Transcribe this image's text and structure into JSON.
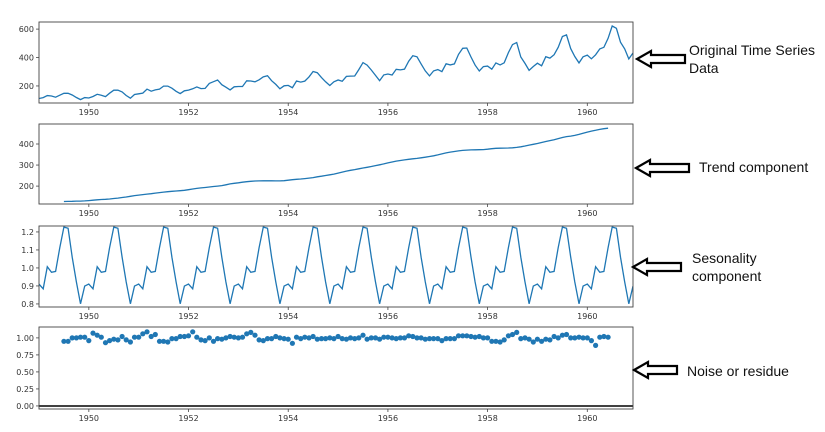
{
  "chart_data": [
    {
      "type": "line",
      "start": "1949-01",
      "frequency": "monthly",
      "values": [
        112,
        118,
        132,
        129,
        121,
        135,
        148,
        148,
        136,
        119,
        104,
        118,
        115,
        126,
        141,
        135,
        125,
        149,
        170,
        170,
        158,
        133,
        114,
        140,
        145,
        150,
        178,
        163,
        172,
        178,
        199,
        199,
        184,
        162,
        146,
        166,
        171,
        180,
        193,
        181,
        183,
        218,
        230,
        242,
        209,
        191,
        172,
        194,
        196,
        196,
        236,
        235,
        229,
        243,
        264,
        272,
        237,
        211,
        180,
        201,
        204,
        188,
        235,
        227,
        234,
        264,
        302,
        293,
        259,
        229,
        203,
        229,
        242,
        233,
        267,
        269,
        270,
        315,
        364,
        347,
        312,
        274,
        237,
        278,
        284,
        277,
        317,
        313,
        318,
        374,
        413,
        405,
        355,
        306,
        271,
        306,
        315,
        301,
        356,
        348,
        355,
        422,
        465,
        467,
        404,
        347,
        305,
        336,
        340,
        318,
        362,
        348,
        363,
        435,
        491,
        505,
        404,
        359,
        310,
        337,
        360,
        342,
        406,
        396,
        420,
        472,
        548,
        559,
        463,
        407,
        362,
        405,
        417,
        391,
        419,
        461,
        472,
        535,
        622,
        606,
        508,
        461,
        390,
        432
      ],
      "ylim": [
        80,
        650
      ],
      "yticks": [
        "200",
        "400",
        "600"
      ],
      "ytick_values": [
        200,
        400,
        600
      ]
    },
    {
      "type": "line",
      "start": "1949-07",
      "frequency": "monthly",
      "values": [
        126.8,
        127.3,
        128.0,
        128.6,
        129.0,
        129.8,
        131.2,
        133.1,
        134.9,
        136.4,
        137.4,
        138.8,
        140.9,
        143.2,
        145.7,
        148.4,
        151.5,
        154.7,
        157.1,
        159.5,
        161.8,
        164.1,
        166.7,
        169.1,
        171.3,
        173.6,
        175.5,
        176.8,
        178.0,
        180.2,
        183.1,
        186.2,
        189.0,
        191.3,
        193.6,
        195.8,
        198.0,
        199.8,
        202.2,
        206.3,
        210.4,
        213.4,
        215.8,
        218.5,
        220.9,
        222.9,
        224.1,
        224.7,
        225.3,
        225.3,
        225.0,
        224.6,
        224.5,
        225.5,
        228.0,
        230.5,
        232.2,
        233.9,
        235.6,
        237.8,
        240.5,
        244.0,
        247.2,
        250.3,
        253.5,
        257.1,
        261.8,
        266.7,
        271.1,
        275.2,
        278.5,
        282.0,
        285.8,
        289.3,
        293.3,
        297.2,
        301.0,
        305.5,
        310.0,
        314.4,
        318.6,
        321.8,
        324.5,
        327.1,
        329.5,
        331.8,
        334.5,
        337.5,
        340.5,
        344.1,
        348.2,
        353.0,
        357.6,
        361.4,
        364.5,
        367.2,
        369.5,
        371.2,
        372.2,
        372.4,
        372.8,
        373.6,
        375.3,
        377.9,
        379.5,
        380.0,
        380.7,
        381.0,
        381.8,
        383.7,
        386.5,
        390.3,
        394.7,
        398.6,
        402.5,
        407.2,
        411.9,
        416.3,
        420.5,
        425.5,
        430.7,
        435.1,
        437.7,
        441.0,
        445.8,
        450.6,
        456.3,
        461.4,
        465.2,
        469.3,
        472.8,
        475.0
      ],
      "ylim": [
        115,
        495
      ],
      "yticks": [
        "200",
        "300",
        "400"
      ],
      "ytick_values": [
        200,
        300,
        400
      ]
    },
    {
      "type": "line",
      "start": "1949-01",
      "frequency": "monthly",
      "monthly_pattern": [
        0.91,
        0.884,
        1.007,
        0.976,
        0.981,
        1.113,
        1.227,
        1.22,
        1.06,
        0.922,
        0.801,
        0.899
      ],
      "repeat_years": 12,
      "ylim": [
        0.783,
        1.233
      ],
      "yticks": [
        "0.8",
        "0.9",
        "1.0",
        "1.1",
        "1.2"
      ],
      "ytick_values": [
        0.8,
        0.9,
        1.0,
        1.1,
        1.2
      ]
    },
    {
      "type": "scatter",
      "start": "1949-07",
      "frequency": "monthly",
      "values": [
        0.95,
        0.95,
        1.0,
        1.0,
        1.01,
        1.01,
        0.96,
        1.07,
        1.04,
        1.01,
        0.93,
        0.96,
        0.98,
        0.97,
        1.02,
        0.97,
        0.94,
        1.01,
        1.01,
        1.06,
        1.09,
        1.02,
        1.05,
        0.95,
        0.95,
        0.94,
        0.99,
        0.99,
        1.02,
        1.02,
        1.03,
        1.09,
        1.01,
        0.97,
        0.96,
        1.0,
        0.95,
        0.99,
        0.98,
        1.0,
        1.02,
        1.01,
        1.0,
        1.01,
        1.06,
        1.08,
        1.04,
        0.97,
        0.96,
        0.99,
        0.99,
        1.02,
        1.0,
        0.99,
        0.98,
        0.92,
        1.01,
        0.99,
        1.01,
        1.0,
        1.02,
        0.98,
        0.99,
        0.99,
        1.0,
        0.99,
        1.02,
        0.99,
        0.98,
        1.0,
        0.99,
        1.0,
        1.04,
        0.98,
        1.0,
        1.0,
        0.98,
        1.01,
        1.01,
        1.0,
        0.99,
        1.0,
        1.0,
        1.03,
        1.02,
        1.0,
        1.0,
        0.98,
        0.99,
        0.99,
        0.99,
        0.96,
        0.99,
        0.99,
        0.99,
        1.03,
        1.03,
        1.03,
        1.02,
        1.01,
        1.02,
        1.0,
        1.0,
        0.95,
        0.95,
        0.94,
        0.97,
        1.03,
        1.05,
        1.08,
        0.99,
        1.0,
        0.98,
        0.94,
        0.98,
        0.95,
        0.98,
        0.97,
        1.02,
        1.0,
        1.04,
        1.05,
        1.0,
        1.0,
        1.01,
        1.0,
        1.0,
        0.96,
        0.89,
        1.01,
        1.02,
        1.01
      ],
      "ylim": [
        -0.045,
        1.16
      ],
      "yticks": [
        "0.00",
        "0.25",
        "0.50",
        "0.75",
        "1.00"
      ],
      "ytick_values": [
        0,
        0.25,
        0.5,
        0.75,
        1.0
      ],
      "reference_line": 0
    }
  ],
  "xaxis": {
    "xlim": [
      1949.0,
      1960.917
    ],
    "ticks": [
      "1950",
      "1952",
      "1954",
      "1956",
      "1958",
      "1960"
    ],
    "tick_values": [
      1950,
      1952,
      1954,
      1956,
      1958,
      1960
    ]
  },
  "colors": {
    "series": "#1f77b4",
    "frame": "#444444",
    "text": "#333333",
    "arrow": "#000000"
  },
  "annotations": {
    "original": "Original Time Series Data",
    "trend": "Trend component",
    "seasonal": "Sesonality component",
    "residual": "Noise or residue"
  }
}
